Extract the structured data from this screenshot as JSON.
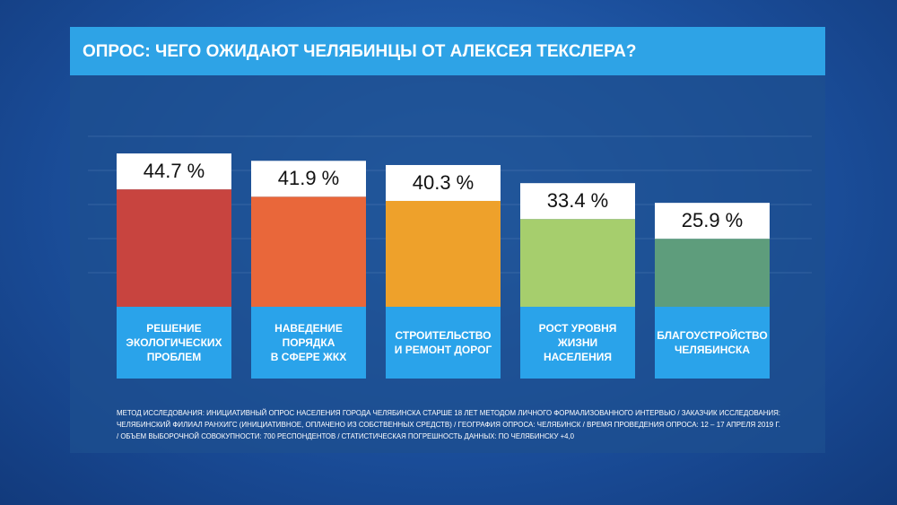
{
  "chart_data": {
    "type": "bar",
    "title": "ОПРОС: ЧЕГО ОЖИДАЮТ ЧЕЛЯБИНЦЫ ОТ АЛЕКСЕЯ ТЕКСЛЕРА?",
    "categories": [
      "РЕШЕНИЕ\nЭКОЛОГИЧЕСКИХ\nПРОБЛЕМ",
      "НАВЕДЕНИЕ\nПОРЯДКА\nВ СФЕРЕ ЖКХ",
      "СТРОИТЕЛЬСТВО\nИ РЕМОНТ ДОРОГ",
      "РОСТ УРОВНЯ\nЖИЗНИ\nНАСЕЛЕНИЯ",
      "БЛАГОУСТРОЙСТВО\nЧЕЛЯБИНСКА"
    ],
    "values": [
      44.7,
      41.9,
      40.3,
      33.4,
      25.9
    ],
    "value_labels": [
      "44.7 %",
      "41.9 %",
      "40.3 %",
      "33.4 %",
      "25.9 %"
    ],
    "colors": [
      "#c8443f",
      "#e9673a",
      "#eea12b",
      "#a6ce6d",
      "#5e9d7c"
    ],
    "ylim": [
      0,
      70
    ],
    "footnote": [
      "МЕТОД ИССЛЕДОВАНИЯ: ИНИЦИАТИВНЫЙ ОПРОС НАСЕЛЕНИЯ ГОРОДА ЧЕЛЯБИНСКА СТАРШЕ 18 ЛЕТ МЕТОДОМ ЛИЧНОГО ФОРМАЛИЗОВАННОГО ИНТЕРВЬЮ / ЗАКАЗЧИК ИССЛЕДОВАНИЯ:",
      "ЧЕЛЯБИНСКИЙ ФИЛИАЛ РАНХИГС (ИНИЦИАТИВНОЕ, ОПЛАЧЕНО ИЗ СОБСТВЕННЫХ СРЕДСТВ) / ГЕОГРАФИЯ ОПРОСА: ЧЕЛЯБИНСК / ВРЕМЯ ПРОВЕДЕНИЯ ОПРОСА: 12 – 17 АПРЕЛЯ 2019 Г.",
      "/ ОБЪЕМ ВЫБОРОЧНОЙ СОВОКУПНОСТИ: 700 РЕСПОНДЕНТОВ / СТАТИСТИЧЕСКАЯ ПОГРЕШНОСТЬ ДАННЫХ: ПО ЧЕЛЯБИНСКУ +4,0"
    ]
  }
}
